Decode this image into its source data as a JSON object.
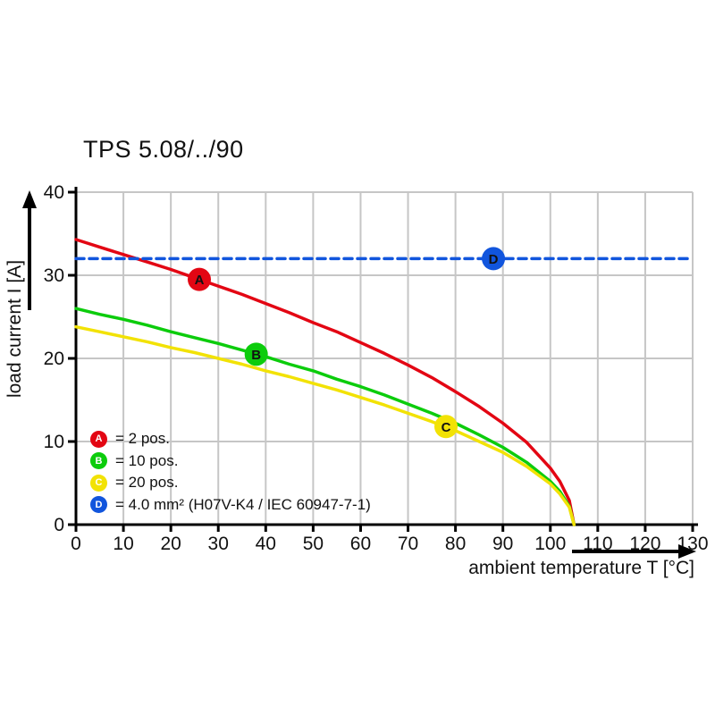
{
  "title": "TPS 5.08/../90",
  "axes": {
    "x_label": "ambient temperature T [°C]",
    "y_label": "load current I [A]",
    "x_ticks": [
      0,
      10,
      20,
      30,
      40,
      50,
      60,
      70,
      80,
      90,
      100,
      110,
      120,
      130
    ],
    "y_ticks": [
      0,
      10,
      20,
      30,
      40
    ]
  },
  "colors": {
    "red": "#e30613",
    "green": "#0ccc0c",
    "yellow": "#f2e205",
    "blue": "#1155dd",
    "grid": "#c6c6c6",
    "axis": "#000000"
  },
  "legend": {
    "items": [
      {
        "letter": "A",
        "color": "#e30613",
        "text": "= 2 pos."
      },
      {
        "letter": "B",
        "color": "#0ccc0c",
        "text": "= 10 pos."
      },
      {
        "letter": "C",
        "color": "#f2e205",
        "text": "= 20 pos."
      },
      {
        "letter": "D",
        "color": "#1155dd",
        "text": "= 4.0 mm² (H07V-K4 / IEC 60947-7-1)"
      }
    ]
  },
  "chart_data": {
    "type": "line",
    "title": "TPS 5.08/../90",
    "xlabel": "ambient temperature T [°C]",
    "ylabel": "load current I [A]",
    "xlim": [
      0,
      130
    ],
    "ylim": [
      0,
      40
    ],
    "x_ticks": [
      0,
      10,
      20,
      30,
      40,
      50,
      60,
      70,
      80,
      90,
      100,
      110,
      120,
      130
    ],
    "y_ticks": [
      0,
      10,
      20,
      30,
      40
    ],
    "grid": true,
    "legend_position": "inside-bottom-left",
    "series": [
      {
        "name": "A = 2 pos.",
        "letter": "A",
        "color": "#e30613",
        "style": "solid",
        "marker_at": [
          26,
          29.5
        ],
        "points": [
          [
            0,
            34.3
          ],
          [
            5,
            33.4
          ],
          [
            10,
            32.5
          ],
          [
            15,
            31.6
          ],
          [
            20,
            30.7
          ],
          [
            25,
            29.7
          ],
          [
            30,
            28.7
          ],
          [
            35,
            27.7
          ],
          [
            40,
            26.6
          ],
          [
            45,
            25.5
          ],
          [
            50,
            24.3
          ],
          [
            55,
            23.2
          ],
          [
            60,
            21.9
          ],
          [
            65,
            20.6
          ],
          [
            70,
            19.2
          ],
          [
            75,
            17.7
          ],
          [
            80,
            16.0
          ],
          [
            85,
            14.2
          ],
          [
            90,
            12.2
          ],
          [
            95,
            9.9
          ],
          [
            100,
            6.8
          ],
          [
            102,
            5.2
          ],
          [
            104,
            2.9
          ],
          [
            105,
            0
          ]
        ]
      },
      {
        "name": "B = 10 pos.",
        "letter": "B",
        "color": "#0ccc0c",
        "style": "solid",
        "marker_at": [
          38,
          20.5
        ],
        "points": [
          [
            0,
            26.0
          ],
          [
            5,
            25.3
          ],
          [
            10,
            24.7
          ],
          [
            15,
            24.0
          ],
          [
            20,
            23.2
          ],
          [
            25,
            22.5
          ],
          [
            30,
            21.8
          ],
          [
            35,
            21.0
          ],
          [
            40,
            20.2
          ],
          [
            45,
            19.3
          ],
          [
            50,
            18.5
          ],
          [
            55,
            17.5
          ],
          [
            60,
            16.6
          ],
          [
            65,
            15.6
          ],
          [
            70,
            14.5
          ],
          [
            75,
            13.4
          ],
          [
            80,
            12.2
          ],
          [
            85,
            10.8
          ],
          [
            90,
            9.3
          ],
          [
            95,
            7.5
          ],
          [
            100,
            5.2
          ],
          [
            102,
            4.0
          ],
          [
            104,
            2.2
          ],
          [
            105,
            0
          ]
        ]
      },
      {
        "name": "C = 20 pos.",
        "letter": "C",
        "color": "#f2e205",
        "style": "solid",
        "marker_at": [
          78,
          11.8
        ],
        "points": [
          [
            0,
            23.8
          ],
          [
            5,
            23.2
          ],
          [
            10,
            22.6
          ],
          [
            15,
            22.0
          ],
          [
            20,
            21.3
          ],
          [
            25,
            20.7
          ],
          [
            30,
            20.0
          ],
          [
            35,
            19.3
          ],
          [
            40,
            18.5
          ],
          [
            45,
            17.8
          ],
          [
            50,
            17.0
          ],
          [
            55,
            16.2
          ],
          [
            60,
            15.3
          ],
          [
            65,
            14.4
          ],
          [
            70,
            13.4
          ],
          [
            75,
            12.4
          ],
          [
            80,
            11.3
          ],
          [
            85,
            10.0
          ],
          [
            90,
            8.7
          ],
          [
            95,
            7.0
          ],
          [
            100,
            4.9
          ],
          [
            102,
            3.7
          ],
          [
            104,
            2.1
          ],
          [
            105,
            0
          ]
        ]
      },
      {
        "name": "D = 4.0 mm² (H07V-K4 / IEC 60947-7-1)",
        "letter": "D",
        "color": "#1155dd",
        "style": "dashed",
        "marker_at": [
          88,
          32
        ],
        "points": [
          [
            0,
            32
          ],
          [
            130,
            32
          ]
        ]
      }
    ]
  }
}
